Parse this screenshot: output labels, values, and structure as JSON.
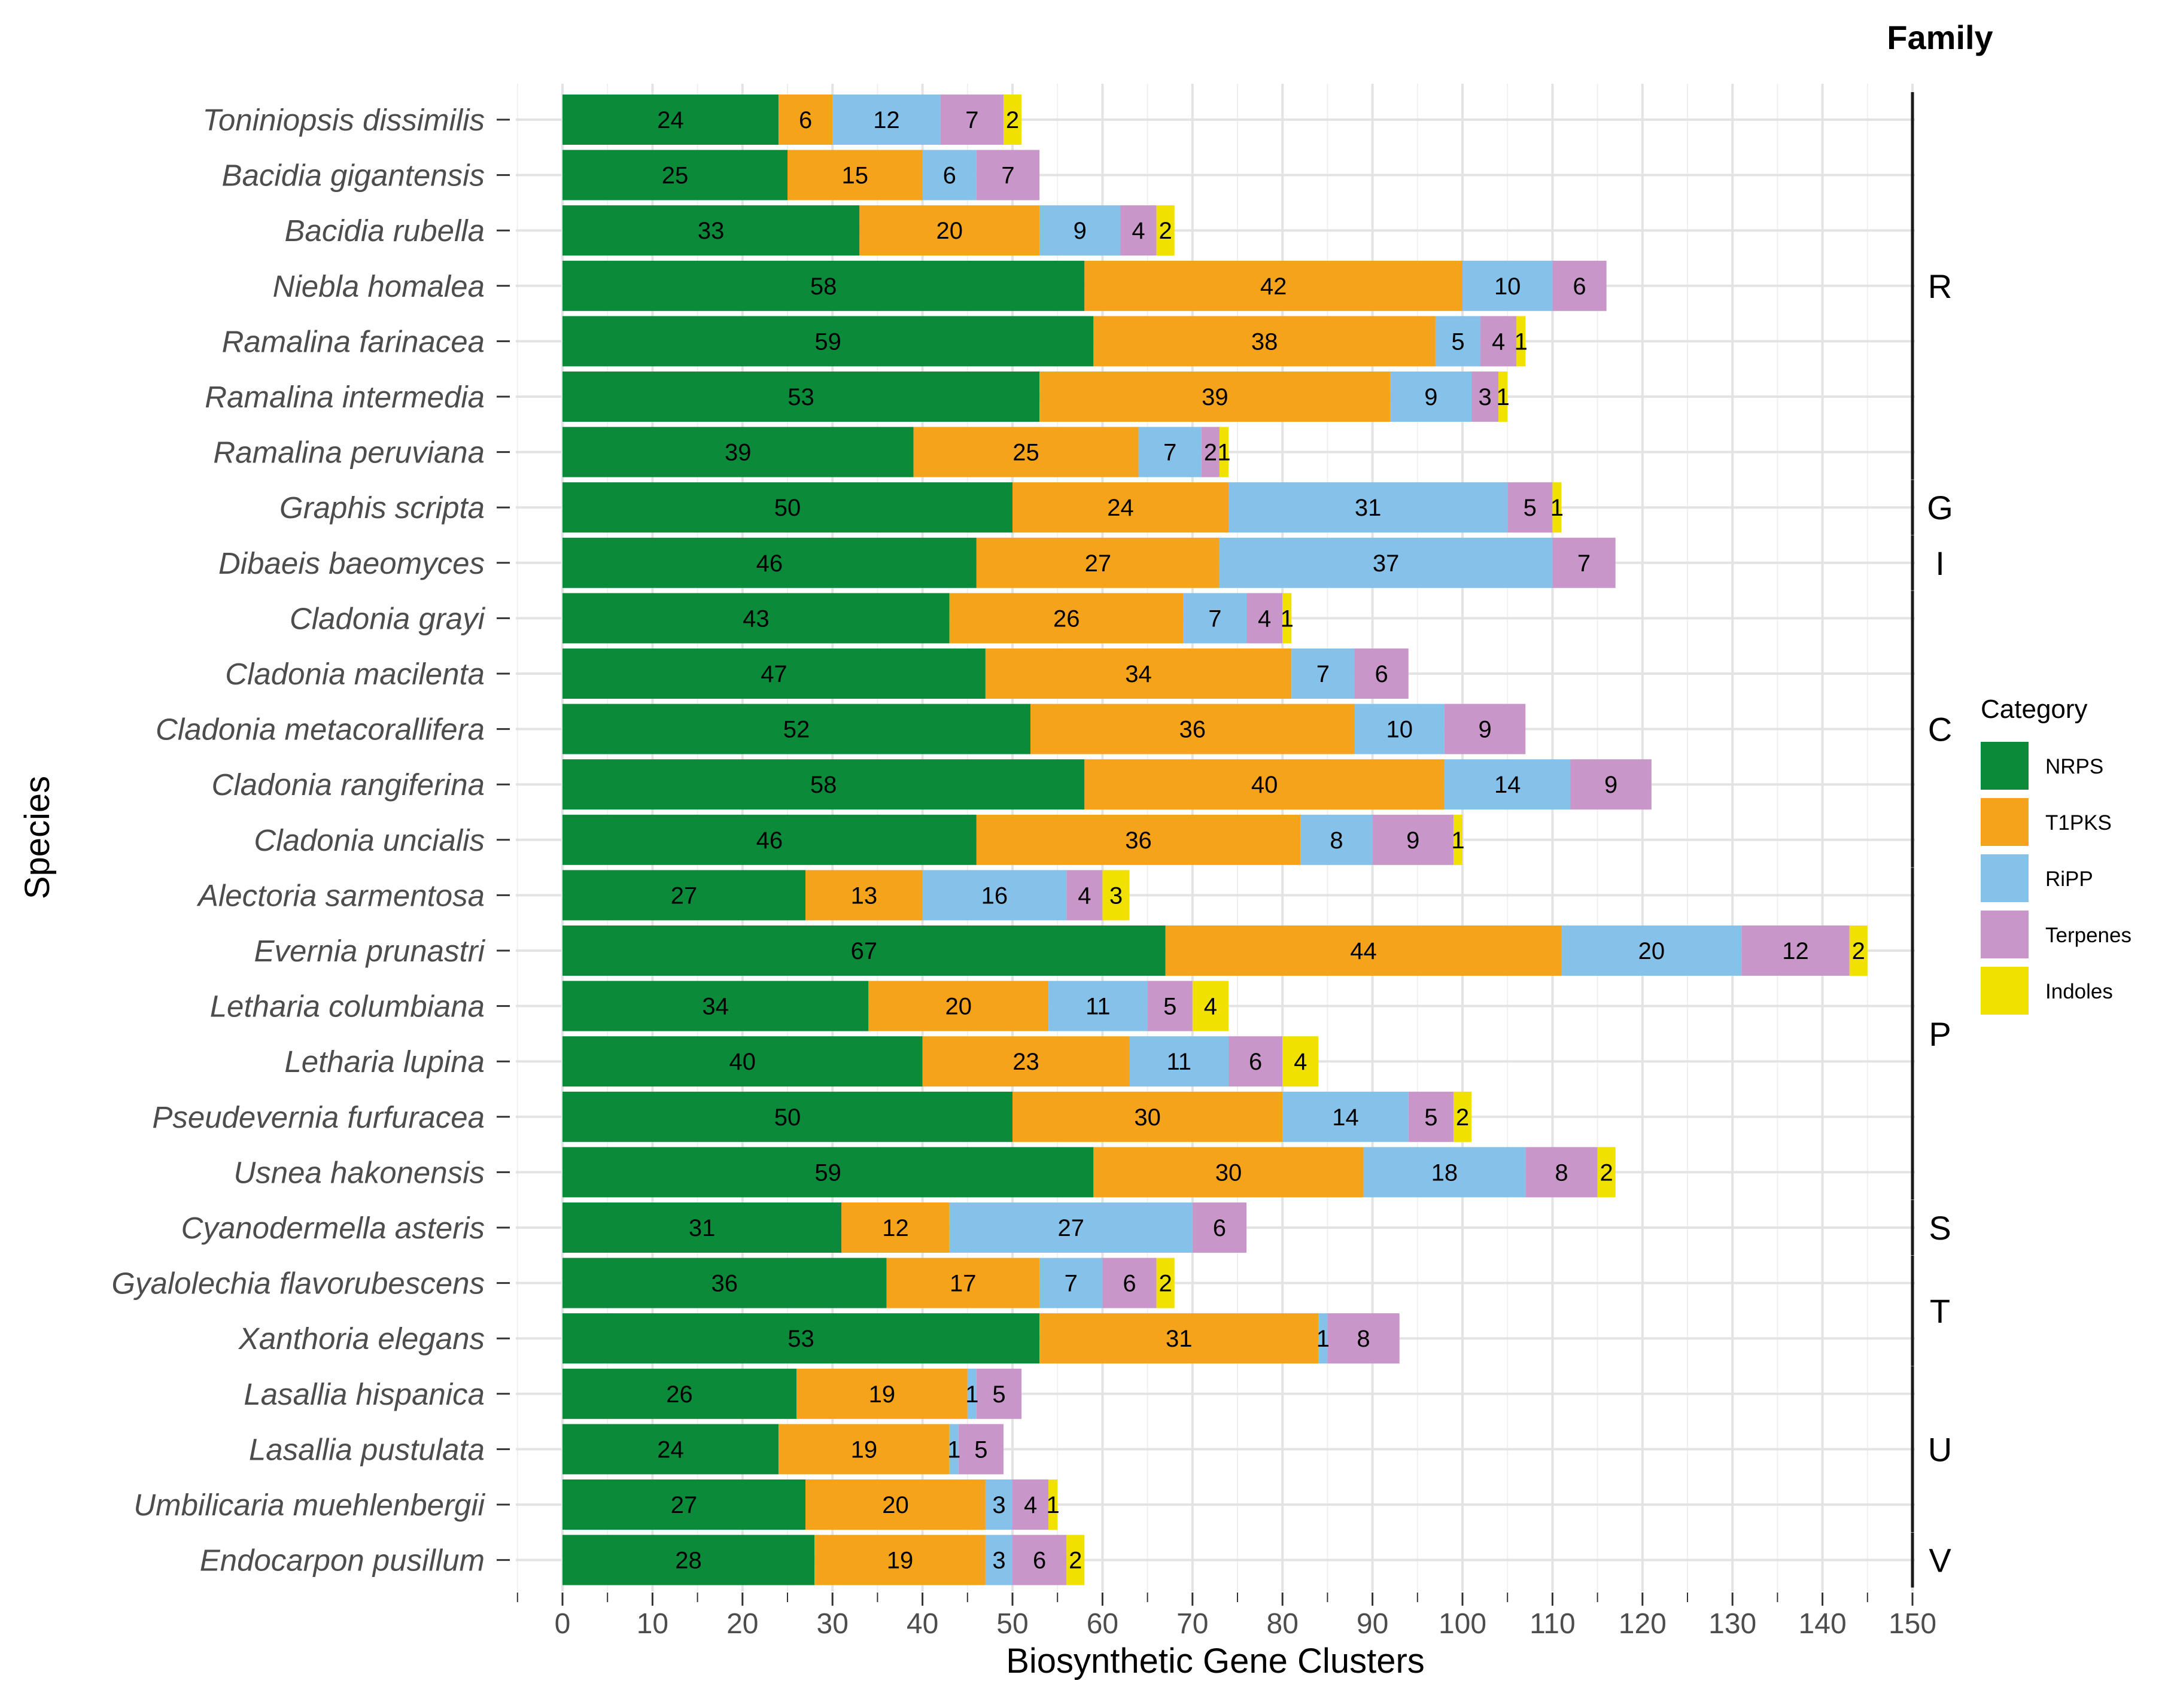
{
  "chart_data": {
    "type": "bar",
    "orientation": "horizontal",
    "stacked": true,
    "xlabel": "Biosynthetic Gene Clusters",
    "ylabel": "Species",
    "xlim": [
      -5,
      150
    ],
    "xticks": [
      0,
      10,
      20,
      30,
      40,
      50,
      60,
      70,
      80,
      90,
      100,
      110,
      120,
      130,
      140,
      150
    ],
    "grid": true,
    "legend": {
      "title": "Category",
      "position": "right",
      "entries": [
        "NRPS",
        "T1PKS",
        "RiPP",
        "Terpenes",
        "Indoles"
      ]
    },
    "colors": {
      "NRPS": "#0b8b3a",
      "T1PKS": "#f5a31a",
      "RiPP": "#85c1e9",
      "Terpenes": "#c896c8",
      "Indoles": "#f0e100"
    },
    "categories": [
      "Toniniopsis dissimilis",
      "Bacidia gigantensis",
      "Bacidia rubella",
      "Niebla homalea",
      "Ramalina farinacea",
      "Ramalina intermedia",
      "Ramalina peruviana",
      "Graphis scripta",
      "Dibaeis baeomyces",
      "Cladonia grayi",
      "Cladonia macilenta",
      "Cladonia metacorallifera",
      "Cladonia rangiferina",
      "Cladonia uncialis",
      "Alectoria sarmentosa",
      "Evernia prunastri",
      "Letharia columbiana",
      "Letharia lupina",
      "Pseudevernia furfuracea",
      "Usnea hakonensis",
      "Cyanodermella asteris",
      "Gyalolechia flavorubescens",
      "Xanthoria elegans",
      "Lasallia hispanica",
      "Lasallia pustulata",
      "Umbilicaria muehlenbergii",
      "Endocarpon pusillum"
    ],
    "series": [
      {
        "name": "NRPS",
        "values": [
          24,
          25,
          33,
          58,
          59,
          53,
          39,
          50,
          46,
          43,
          47,
          52,
          58,
          46,
          27,
          67,
          34,
          40,
          50,
          59,
          31,
          36,
          53,
          26,
          24,
          27,
          28
        ]
      },
      {
        "name": "T1PKS",
        "values": [
          6,
          15,
          20,
          42,
          38,
          39,
          25,
          24,
          27,
          26,
          34,
          36,
          40,
          36,
          13,
          44,
          20,
          23,
          30,
          30,
          12,
          17,
          31,
          19,
          19,
          20,
          19
        ]
      },
      {
        "name": "RiPP",
        "values": [
          12,
          6,
          9,
          10,
          5,
          9,
          7,
          31,
          37,
          7,
          7,
          10,
          14,
          8,
          16,
          20,
          11,
          11,
          14,
          18,
          27,
          7,
          1,
          1,
          1,
          3,
          3
        ]
      },
      {
        "name": "Terpenes",
        "values": [
          7,
          7,
          4,
          6,
          4,
          3,
          2,
          5,
          7,
          4,
          6,
          9,
          9,
          9,
          4,
          12,
          5,
          6,
          5,
          8,
          6,
          6,
          8,
          5,
          5,
          4,
          6
        ]
      },
      {
        "name": "Indoles",
        "values": [
          2,
          0,
          2,
          0,
          1,
          1,
          1,
          1,
          0,
          1,
          0,
          0,
          0,
          1,
          3,
          2,
          4,
          4,
          2,
          2,
          0,
          2,
          0,
          0,
          0,
          1,
          2
        ]
      }
    ],
    "facet": {
      "title": "Family",
      "groups": [
        {
          "label": "R",
          "first": 0,
          "last": 6
        },
        {
          "label": "G",
          "first": 7,
          "last": 7
        },
        {
          "label": "I",
          "first": 8,
          "last": 8
        },
        {
          "label": "C",
          "first": 9,
          "last": 13
        },
        {
          "label": "P",
          "first": 14,
          "last": 19
        },
        {
          "label": "S",
          "first": 20,
          "last": 20
        },
        {
          "label": "T",
          "first": 21,
          "last": 22
        },
        {
          "label": "U",
          "first": 23,
          "last": 25
        },
        {
          "label": "V",
          "first": 26,
          "last": 26
        }
      ]
    }
  }
}
